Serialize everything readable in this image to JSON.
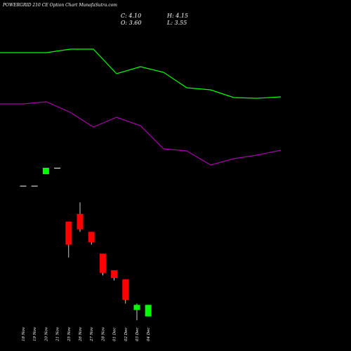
{
  "title": "POWERGRID 210  CE Option  Chart MunafaSutra.com",
  "ohlc": {
    "close_label": "C: 4.10",
    "high_label": "H: 4.15",
    "open_label": "O: 3.60",
    "low_label": "L: 3.55"
  },
  "colors": {
    "background": "#000000",
    "up": "#00ff00",
    "down": "#ff0000",
    "doji": "#ffffff",
    "line_top": "#00ff00",
    "line_bottom": "#aa00aa",
    "text": "#ffffff"
  },
  "chart_data": {
    "type": "candlestick",
    "x": [
      "18 Nov",
      "19 Nov",
      "20 Nov",
      "21 Nov",
      "25 Nov",
      "26 Nov",
      "27 Nov",
      "28 Nov",
      "01 Dec",
      "02 Dec",
      "03 Dec",
      "04 Dec"
    ],
    "candles": [
      {
        "o": 9.75,
        "h": 9.75,
        "l": 9.75,
        "c": 9.75,
        "dir": "doji"
      },
      {
        "o": 9.75,
        "h": 9.75,
        "l": 9.75,
        "c": 9.75,
        "dir": "doji"
      },
      {
        "o": 10.2,
        "h": 10.45,
        "l": 10.2,
        "c": 10.45,
        "dir": "up"
      },
      {
        "o": 10.45,
        "h": 10.45,
        "l": 10.45,
        "c": 10.45,
        "dir": "doji"
      },
      {
        "o": 8.35,
        "h": 8.35,
        "l": 6.95,
        "c": 7.45,
        "dir": "down"
      },
      {
        "o": 8.65,
        "h": 9.1,
        "l": 7.95,
        "c": 8.05,
        "dir": "down"
      },
      {
        "o": 7.95,
        "h": 7.95,
        "l": 7.45,
        "c": 7.55,
        "dir": "down"
      },
      {
        "o": 7.1,
        "h": 7.1,
        "l": 6.25,
        "c": 6.35,
        "dir": "down"
      },
      {
        "o": 6.45,
        "h": 6.45,
        "l": 6.05,
        "c": 6.15,
        "dir": "down"
      },
      {
        "o": 6.1,
        "h": 6.1,
        "l": 5.15,
        "c": 5.3,
        "dir": "down"
      },
      {
        "o": 4.9,
        "h": 5.15,
        "l": 4.5,
        "c": 5.1,
        "dir": "up"
      },
      {
        "o": 4.65,
        "h": 5.1,
        "l": 4.65,
        "c": 5.1,
        "dir": "up"
      }
    ],
    "lines": [
      {
        "color": "#00ff00",
        "points": [
          [
            0,
            75
          ],
          [
            66,
            75
          ],
          [
            100,
            70
          ],
          [
            133,
            70
          ],
          [
            166,
            105
          ],
          [
            200,
            95
          ],
          [
            233,
            103
          ],
          [
            266,
            125
          ],
          [
            300,
            128
          ],
          [
            333,
            139
          ],
          [
            366,
            140
          ],
          [
            400,
            138
          ]
        ]
      },
      {
        "color": "#aa00aa",
        "points": [
          [
            0,
            148
          ],
          [
            33,
            148
          ],
          [
            66,
            145
          ],
          [
            100,
            160
          ],
          [
            133,
            181
          ],
          [
            166,
            167
          ],
          [
            200,
            179
          ],
          [
            233,
            212
          ],
          [
            266,
            215
          ],
          [
            300,
            235
          ],
          [
            333,
            226
          ],
          [
            366,
            221
          ],
          [
            400,
            214
          ]
        ]
      }
    ],
    "y_range": [
      3.3,
      17.0
    ],
    "ohlc_last": {
      "open": 3.6,
      "high": 4.15,
      "low": 3.55,
      "close": 4.1
    }
  }
}
